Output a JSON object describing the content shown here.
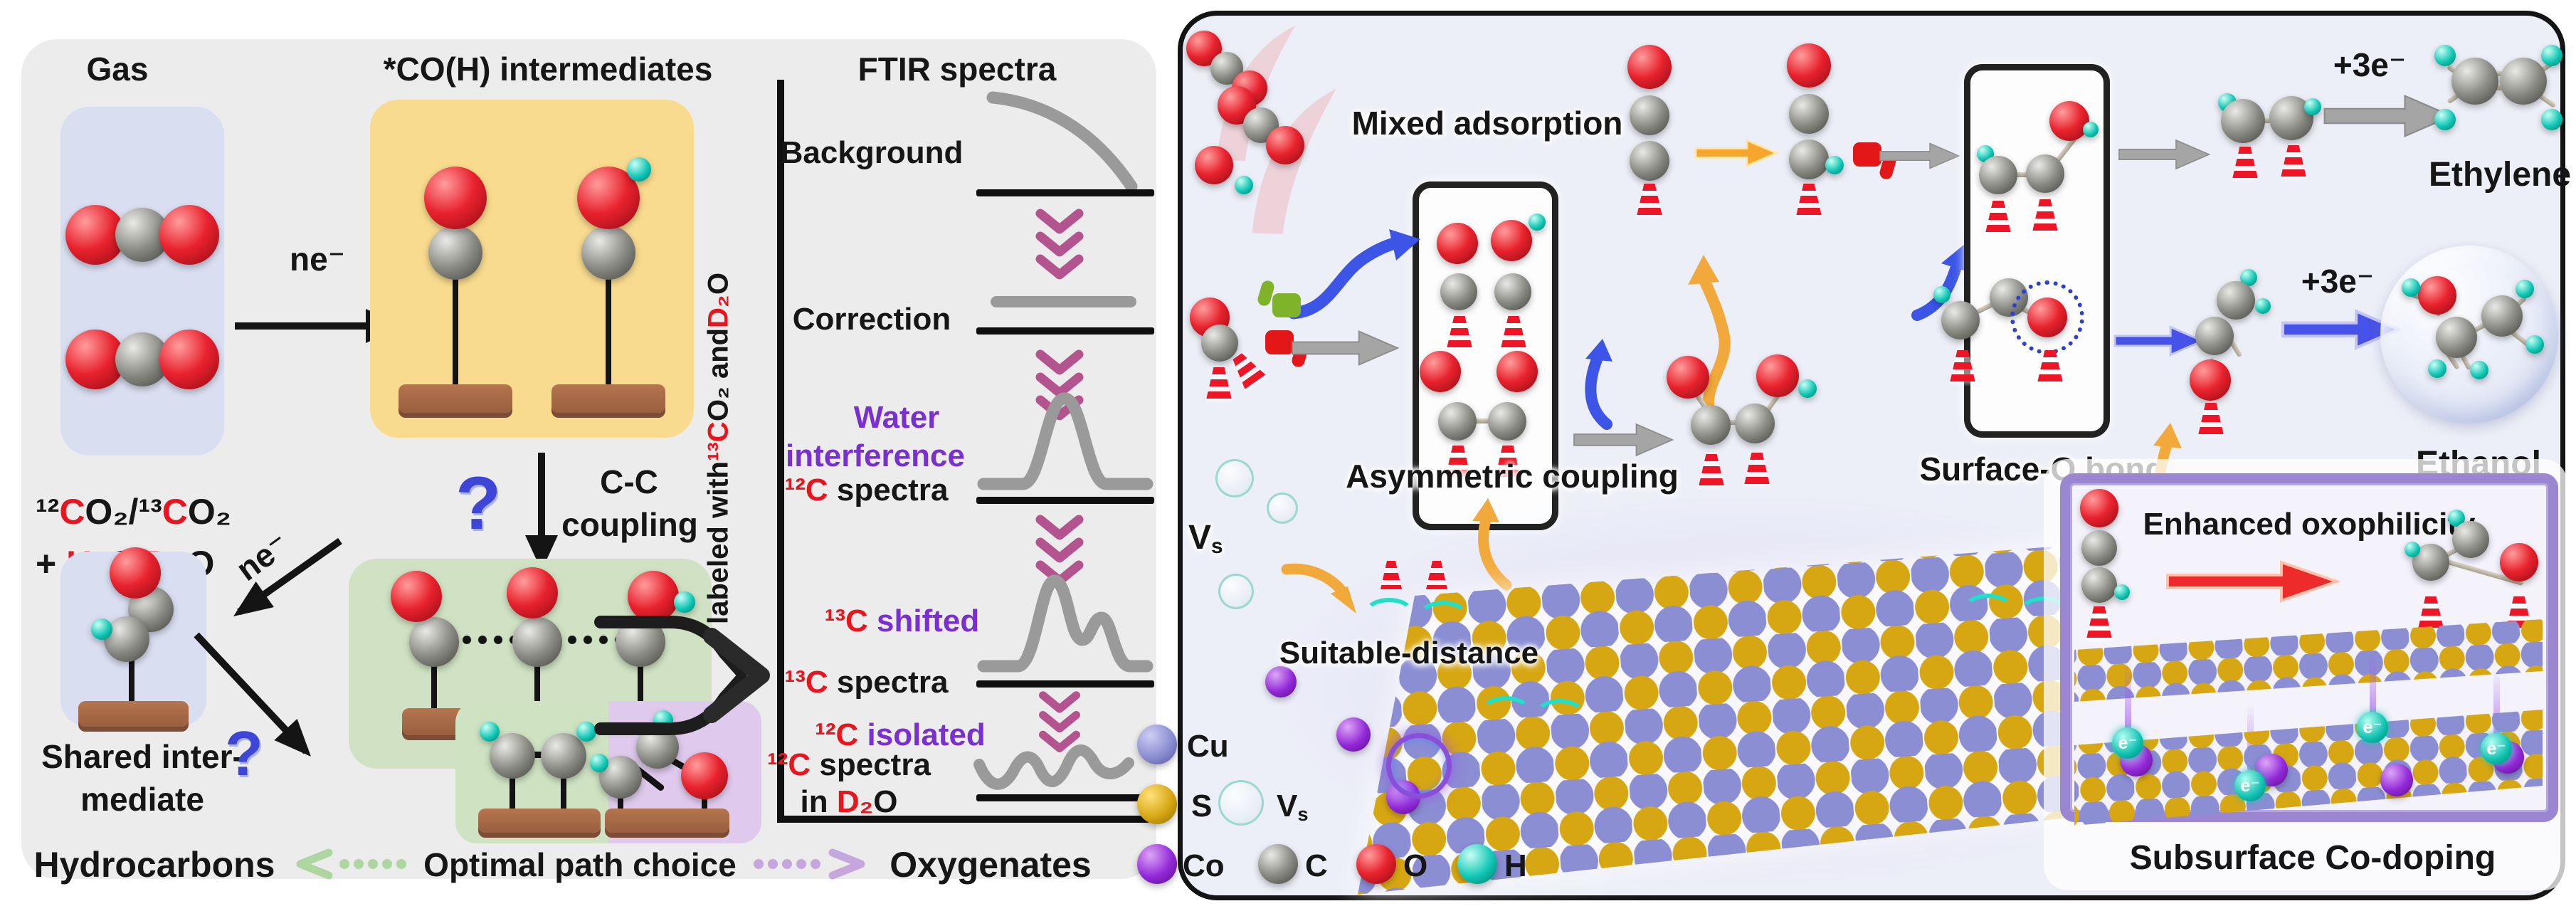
{
  "left_panel": {
    "header_gas": "Gas",
    "header_intermediates": "*CO(H) intermediates",
    "header_ftir": "FTIR spectra",
    "gas_formula_line1": [
      {
        "t": "¹²"
      },
      {
        "t": "C",
        "c": "red"
      },
      {
        "t": "O₂"
      },
      {
        "t": "/"
      },
      {
        "t": "¹³"
      },
      {
        "t": "C",
        "c": "red"
      },
      {
        "t": "O₂"
      }
    ],
    "gas_formula_line2": [
      {
        "t": "+ "
      },
      {
        "t": "H₂",
        "c": "red"
      },
      {
        "t": "O/"
      },
      {
        "t": "D₂",
        "c": "red"
      },
      {
        "t": "O"
      }
    ],
    "ne_arrow_1": "ne⁻",
    "ne_arrow_2": "ne⁻",
    "question_1": "?",
    "question_2": "?",
    "cc_line1": "C-C",
    "cc_line2": "coupling",
    "shared_line1": "Shared inter-",
    "shared_line2": "mediate",
    "hydrocarbons": "Hydrocarbons",
    "path_choice": "Optimal path choice",
    "oxygenates": "Oxygenates",
    "ftir": {
      "vertical_label": [
        {
          "t": "labeled with "
        },
        {
          "t": "¹³C",
          "c": "red"
        },
        {
          "t": "O₂ and "
        },
        {
          "t": "D₂",
          "c": "red"
        },
        {
          "t": "O"
        }
      ],
      "background": "Background",
      "correction": "Correction",
      "water_line1": [
        {
          "t": "Water",
          "c": "purple"
        }
      ],
      "water_line2": [
        {
          "t": "interference",
          "c": "purple"
        }
      ],
      "c12_spectra": [
        {
          "t": "¹²C",
          "c": "red"
        },
        {
          "t": " spectra"
        }
      ],
      "c13_shifted": [
        {
          "t": "¹³C",
          "c": "red"
        },
        {
          "t": " shifted",
          "c": "purple"
        }
      ],
      "c13_spectra": [
        {
          "t": "¹³C",
          "c": "red"
        },
        {
          "t": " spectra"
        }
      ],
      "c12_isolated": [
        {
          "t": "¹²C",
          "c": "red"
        },
        {
          "t": " isolated",
          "c": "purple"
        }
      ],
      "c12_d2o_line1": [
        {
          "t": "¹²C",
          "c": "red"
        },
        {
          "t": " spectra"
        }
      ],
      "c12_d2o_line2": [
        {
          "t": "in "
        },
        {
          "t": "D₂",
          "c": "red"
        },
        {
          "t": "O"
        }
      ]
    }
  },
  "right_panel": {
    "mixed_adsorption": "Mixed adsorption",
    "asymmetric_coupling": "Asymmetric coupling",
    "suitable_distance": "Suitable-distance",
    "surface_o_bond": "Surface-O bond",
    "enhanced_oxophilicity": "Enhanced oxophilicity",
    "subsurface_co_doping": "Subsurface Co-doping",
    "ethylene": "Ethylene",
    "ethanol": "Ethanol",
    "plus_3e_ethylene": "+3e⁻",
    "plus_3e_ethanol": "+3e⁻",
    "vs_label": [
      {
        "t": "V"
      },
      {
        "t": "s",
        "c": "sub"
      }
    ],
    "electron": "e⁻",
    "legend": {
      "cu": "Cu",
      "s": "S",
      "vs": [
        {
          "t": "V"
        },
        {
          "t": "s",
          "c": "sub"
        }
      ],
      "co": "Co",
      "c": "C",
      "o": "O",
      "h": "H"
    }
  },
  "colors": {
    "carbon": "#6f6f6a",
    "oxygen": "#cf1420",
    "hydrogen": "#0fbfae",
    "copper": "#8b8ed3",
    "sulfur": "#d7a713",
    "cobalt": "#9228d8",
    "accent_purple": "#7a2fd0",
    "accent_red": "#e8141e",
    "chevron": "#b4548e"
  }
}
